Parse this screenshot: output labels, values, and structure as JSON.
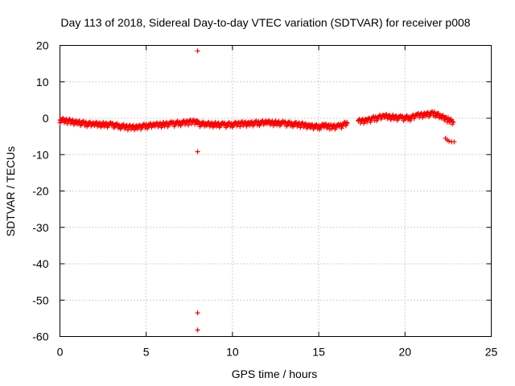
{
  "chart_data": {
    "type": "scatter",
    "title": "Day 113 of 2018, Sidereal Day-to-day VTEC variation (SDTVAR) for receiver p008",
    "xlabel": "GPS time / hours",
    "ylabel": "SDTVAR / TECUs",
    "xlim": [
      0,
      25
    ],
    "ylim": [
      -60,
      20
    ],
    "xticks": [
      "0",
      "5",
      "10",
      "15",
      "20",
      "25"
    ],
    "yticks": [
      "20",
      "10",
      "0",
      "-10",
      "-20",
      "-30",
      "-40",
      "-50",
      "-60"
    ],
    "grid": true,
    "marker": "+",
    "color": "#ff0000",
    "series": [
      {
        "name": "p008",
        "profile": [
          [
            0.0,
            -0.6
          ],
          [
            0.5,
            -0.9
          ],
          [
            1.0,
            -1.2
          ],
          [
            1.5,
            -1.6
          ],
          [
            2.0,
            -1.8
          ],
          [
            2.5,
            -1.8
          ],
          [
            3.0,
            -1.9
          ],
          [
            3.5,
            -2.3
          ],
          [
            4.0,
            -2.6
          ],
          [
            4.5,
            -2.5
          ],
          [
            5.0,
            -2.2
          ],
          [
            5.5,
            -2.0
          ],
          [
            6.0,
            -1.8
          ],
          [
            6.5,
            -1.6
          ],
          [
            7.0,
            -1.4
          ],
          [
            7.5,
            -1.2
          ],
          [
            7.95,
            -0.9
          ],
          [
            8.05,
            -1.6
          ],
          [
            8.5,
            -1.8
          ],
          [
            9.0,
            -1.8
          ],
          [
            9.5,
            -1.9
          ],
          [
            10.0,
            -1.8
          ],
          [
            10.5,
            -1.6
          ],
          [
            11.0,
            -1.5
          ],
          [
            11.5,
            -1.4
          ],
          [
            12.0,
            -1.3
          ],
          [
            12.5,
            -1.4
          ],
          [
            13.0,
            -1.5
          ],
          [
            13.5,
            -1.7
          ],
          [
            14.0,
            -1.9
          ],
          [
            14.5,
            -2.2
          ],
          [
            15.0,
            -2.5
          ],
          [
            15.3,
            -2.2
          ],
          [
            15.7,
            -2.4
          ],
          [
            16.2,
            -2.3
          ],
          [
            16.7,
            -1.4
          ],
          [
            17.3,
            -1.0
          ],
          [
            17.8,
            -0.6
          ],
          [
            18.3,
            -0.1
          ],
          [
            18.8,
            0.4
          ],
          [
            19.3,
            0.2
          ],
          [
            19.8,
            0.0
          ],
          [
            20.3,
            0.0
          ],
          [
            20.7,
            0.6
          ],
          [
            21.2,
            1.0
          ],
          [
            21.7,
            1.2
          ],
          [
            22.1,
            0.3
          ],
          [
            22.5,
            -0.5
          ],
          [
            22.8,
            -1.1
          ]
        ],
        "points": [
          [
            7.98,
            18.5
          ],
          [
            7.98,
            -9.2
          ],
          [
            7.98,
            -53.5
          ],
          [
            7.98,
            -58.2
          ],
          [
            22.35,
            -5.5
          ],
          [
            22.45,
            -6.0
          ],
          [
            22.55,
            -6.3
          ],
          [
            22.7,
            -6.5
          ],
          [
            22.85,
            -6.5
          ]
        ]
      }
    ]
  }
}
